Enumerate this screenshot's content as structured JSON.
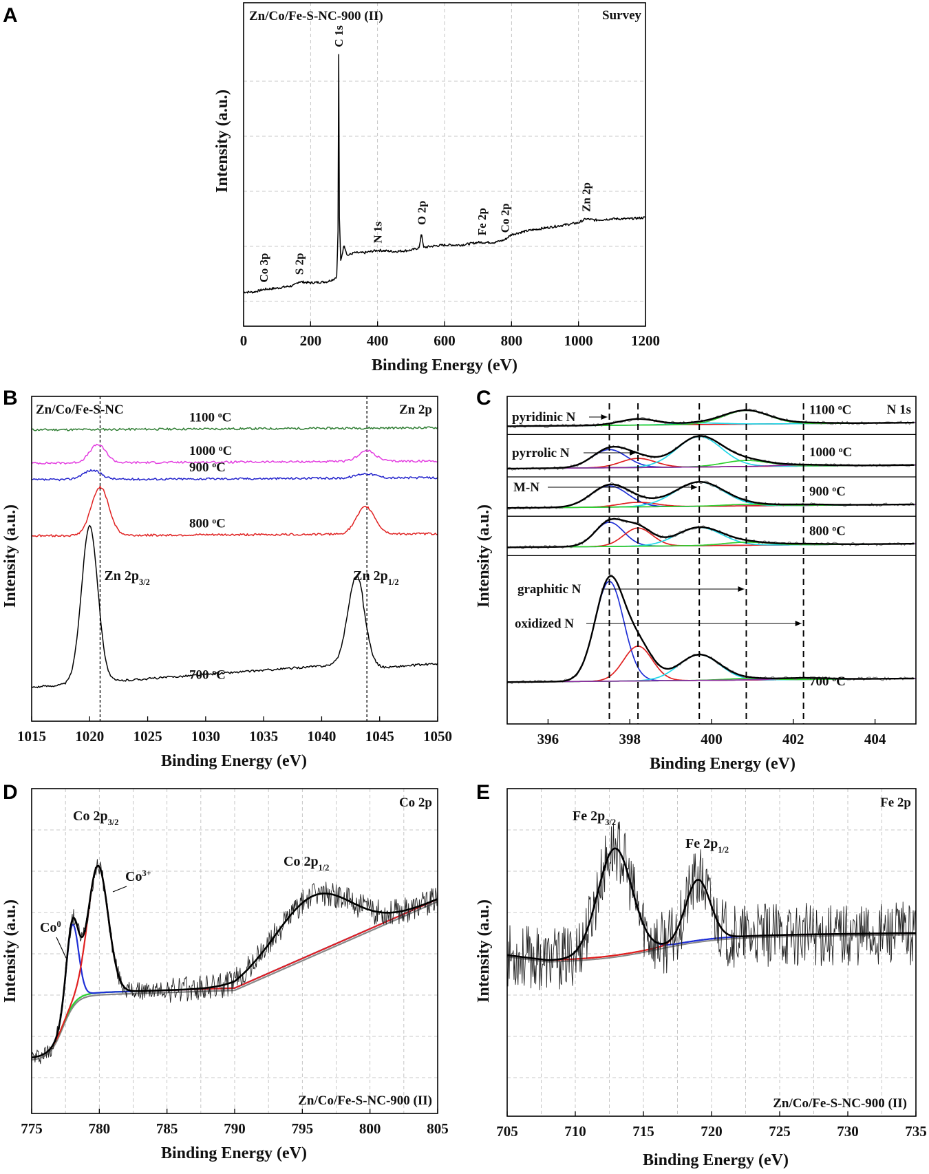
{
  "chart_data": [
    {
      "panel": "A",
      "type": "line",
      "sample_label": "Zn/Co/Fe-S-NC-900 (II)",
      "region_label": "Survey",
      "xlabel": "Binding Energy (eV)",
      "ylabel": "Intensity (a.u.)",
      "xlim": [
        0,
        1200
      ],
      "xticks": [
        "0",
        "200",
        "400",
        "600",
        "800",
        "1000",
        "1200"
      ],
      "tick_values": [
        0,
        200,
        400,
        600,
        800,
        1000,
        1200
      ],
      "ylim": [
        0,
        100
      ],
      "peaks": [
        {
          "label": "Co 3p",
          "x": 60,
          "y": 3
        },
        {
          "label": "S 2p",
          "x": 165,
          "y": 6
        },
        {
          "label": "C 1s",
          "x": 284,
          "y": 93
        },
        {
          "label": "N 1s",
          "x": 400,
          "y": 18
        },
        {
          "label": "O 2p",
          "x": 531,
          "y": 25
        },
        {
          "label": "Fe 2p",
          "x": 711,
          "y": 21
        },
        {
          "label": "Co 2p",
          "x": 780,
          "y": 22
        },
        {
          "label": "Zn 2p",
          "x": 1022,
          "y": 30
        }
      ],
      "series": [
        {
          "name": "Survey spectrum",
          "color": "#000000",
          "x": [
            0,
            30,
            60,
            100,
            150,
            165,
            200,
            250,
            270,
            278,
            282,
            284,
            286,
            290,
            300,
            310,
            330,
            360,
            400,
            450,
            500,
            525,
            531,
            537,
            560,
            600,
            650,
            700,
            711,
            750,
            780,
            800,
            850,
            900,
            950,
            1000,
            1022,
            1050,
            1100,
            1150,
            1200
          ],
          "y": [
            2,
            2,
            3,
            3.5,
            4.5,
            6,
            5.5,
            6,
            7,
            8,
            25,
            93,
            30,
            14,
            20,
            16,
            17,
            17,
            18,
            17.5,
            18,
            19,
            25,
            19,
            19.5,
            20,
            20,
            21,
            21,
            21,
            22,
            24,
            25.5,
            26.5,
            27.5,
            28.5,
            30,
            29.5,
            30,
            30,
            30.5
          ]
        }
      ]
    },
    {
      "panel": "B",
      "type": "line",
      "sample_label": "Zn/Co/Fe-S-NC",
      "region_label": "Zn 2p",
      "xlabel": "Binding Energy (eV)",
      "ylabel": "Intensity (a.u.)",
      "xlim": [
        1015,
        1050
      ],
      "xticks": [
        "1015",
        "1020",
        "1025",
        "1030",
        "1035",
        "1040",
        "1045",
        "1050"
      ],
      "tick_values": [
        1015,
        1020,
        1025,
        1030,
        1035,
        1040,
        1045,
        1050
      ],
      "reference_lines": [
        1020.9,
        1043.9
      ],
      "peak_labels": [
        {
          "main": "Zn 2p",
          "sub": "3/2",
          "x": 1020.9
        },
        {
          "main": "Zn 2p",
          "sub": "1/2",
          "x": 1043.9
        }
      ],
      "series": [
        {
          "name": "1100 °C",
          "label_main": "1100 ",
          "label_sup": "o",
          "label_unit": "C",
          "color": "#2e7d32",
          "offset": 91,
          "peak1": 0,
          "peak2": 0,
          "peak1_x": 1021.0,
          "peak2_x": 1044.0,
          "width": 0.7
        },
        {
          "name": "1000 °C",
          "label_main": "1000 ",
          "label_sup": "o",
          "label_unit": "C",
          "color": "#e33ce0",
          "offset": 80,
          "peak1": 6,
          "peak2": 3.5,
          "peak1_x": 1020.7,
          "peak2_x": 1043.9,
          "width": 0.7
        },
        {
          "name": "900 °C",
          "label_main": "900 ",
          "label_sup": "o",
          "label_unit": "C",
          "color": "#2222cc",
          "offset": 74.5,
          "peak1": 3,
          "peak2": 1.5,
          "peak1_x": 1020.2,
          "peak2_x": 1043.8,
          "width": 0.8
        },
        {
          "name": "800 °C",
          "label_main": "800 ",
          "label_sup": "o",
          "label_unit": "C",
          "color": "#e02020",
          "offset": 56,
          "peak1": 16,
          "peak2": 9,
          "peak1_x": 1020.9,
          "peak2_x": 1043.8,
          "width": 0.75
        },
        {
          "name": "700 °C",
          "label_main": "700 ",
          "label_sup": "o",
          "label_unit": "C",
          "color": "#000000",
          "offset": 6,
          "peak1": 52,
          "peak2": 29,
          "peak1_x": 1020.0,
          "peak2_x": 1043.0,
          "width": 0.7
        }
      ]
    },
    {
      "panel": "C",
      "type": "line",
      "region_label": "N 1s",
      "xlabel": "Binding Energy (eV)",
      "ylabel": "Intensity (a.u.)",
      "xlim": [
        395,
        405
      ],
      "xticks": [
        "396",
        "398",
        "400",
        "402",
        "404"
      ],
      "tick_values": [
        396,
        398,
        400,
        402,
        404
      ],
      "reference_lines": [
        397.5,
        398.2,
        399.7,
        400.85,
        402.25
      ],
      "species": [
        {
          "name": "pyridinic N",
          "x": 397.5,
          "color": "#1f2fd6"
        },
        {
          "name": "pyrrolic N",
          "x": 398.2,
          "color": "#e02020"
        },
        {
          "name": "M-N",
          "x": 399.7,
          "color": "#22d8e8"
        },
        {
          "name": "graphitic N",
          "x": 400.85,
          "color": "#2fd02f"
        },
        {
          "name": "oxidized N",
          "x": 402.25,
          "color": "#8a2f9f"
        }
      ],
      "temperatures": [
        {
          "name": "1100 °C",
          "label_main": "1100 ",
          "label_sup": "o",
          "label_unit": "C",
          "offset": 91.5,
          "amps": [
            0,
            2,
            0.5,
            4.5,
            0.3
          ],
          "widths": [
            0.45,
            0.45,
            0.6,
            0.55,
            0.6
          ]
        },
        {
          "name": "1000 °C",
          "label_main": "1000 ",
          "label_sup": "o",
          "label_unit": "C",
          "offset": 77.5,
          "amps": [
            6,
            3,
            10,
            2,
            0.4
          ],
          "widths": [
            0.42,
            0.42,
            0.55,
            0.55,
            0.6
          ]
        },
        {
          "name": "900 °C",
          "label_main": "900 ",
          "label_sup": "o",
          "label_unit": "C",
          "offset": 64.5,
          "amps": [
            7,
            1.5,
            8,
            0.5,
            0.3
          ],
          "widths": [
            0.45,
            0.45,
            0.6,
            0.55,
            0.6
          ]
        },
        {
          "name": "800 °C",
          "label_main": "800 ",
          "label_sup": "o",
          "label_unit": "C",
          "offset": 51.5,
          "amps": [
            8,
            6,
            6,
            1,
            0.3
          ],
          "widths": [
            0.35,
            0.35,
            0.55,
            0.55,
            0.6
          ]
        },
        {
          "name": "700 °C",
          "label_main": "700 ",
          "label_sup": "o",
          "label_unit": "C",
          "offset": 7,
          "amps": [
            33,
            11.5,
            8.5,
            0.5,
            0.5
          ],
          "widths": [
            0.35,
            0.35,
            0.5,
            0.5,
            0.6
          ]
        }
      ]
    },
    {
      "panel": "D",
      "type": "line",
      "sample_label": "Zn/Co/Fe-S-NC-900 (II)",
      "region_label": "Co 2p",
      "xlabel": "Binding Energy (eV)",
      "ylabel": "Intensity (a.u.)",
      "xlim": [
        775,
        805
      ],
      "xticks": [
        "775",
        "780",
        "785",
        "790",
        "795",
        "800",
        "805"
      ],
      "tick_values": [
        775,
        780,
        785,
        790,
        795,
        800,
        805
      ],
      "annotations": [
        {
          "main": "Co 2p",
          "sub": "3/2"
        },
        {
          "main": "Co 2p",
          "sub": "1/2"
        },
        {
          "main": "Co",
          "sup": "3+"
        },
        {
          "main": "Co",
          "sup": "0"
        }
      ],
      "series": [
        {
          "name": "Co0",
          "color": "#1f2fd6",
          "center": 778.0,
          "amp": 28,
          "width": 0.45
        },
        {
          "name": "Co3+",
          "color": "#e02020",
          "center": 779.9,
          "amp": 44,
          "width": 0.75
        },
        {
          "name": "Co 2p1/2 satellite",
          "color": "#2fd02f",
          "center": 795.8,
          "amp": 20,
          "width": 2.8
        },
        {
          "name": "background",
          "color": "#22d8e8"
        },
        {
          "name": "envelope",
          "color": "#000000"
        },
        {
          "name": "raw data",
          "color": "#222222"
        }
      ]
    },
    {
      "panel": "E",
      "type": "line",
      "sample_label": "Zn/Co/Fe-S-NC-900 (II)",
      "region_label": "Fe 2p",
      "xlabel": "Binding Energy (eV)",
      "ylabel": "Intensity (a.u.)",
      "xlim": [
        705,
        735
      ],
      "xticks": [
        "705",
        "710",
        "715",
        "720",
        "725",
        "730",
        "735"
      ],
      "tick_values": [
        705,
        710,
        715,
        720,
        725,
        730,
        735
      ],
      "annotations": [
        {
          "main": "Fe 2p",
          "sub": "3/2"
        },
        {
          "main": "Fe 2p",
          "sub": "1/2"
        }
      ],
      "series": [
        {
          "name": "Fe 2p3/2",
          "color": "#1f2fd6",
          "center": 712.9,
          "amp": 37,
          "width": 1.25
        },
        {
          "name": "Fe 2p1/2",
          "color": "#e02020",
          "center": 719.0,
          "amp": 21,
          "width": 0.9
        },
        {
          "name": "background",
          "color": "#888888"
        },
        {
          "name": "envelope",
          "color": "#000000"
        },
        {
          "name": "raw data",
          "color": "#222222"
        }
      ]
    }
  ],
  "panel_letters": [
    "A",
    "B",
    "C",
    "D",
    "E"
  ]
}
